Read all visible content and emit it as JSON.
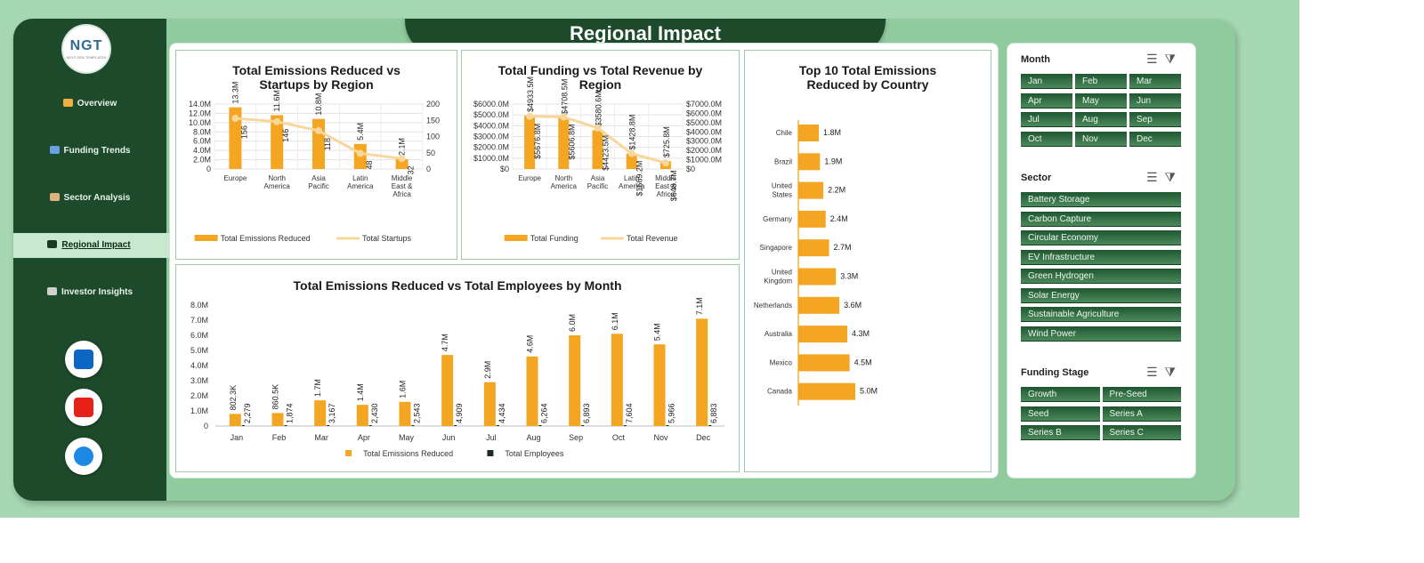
{
  "page_title": "Regional Impact",
  "logo": {
    "text": "NGT",
    "subtext": "NEXT GEN TEMPLATES"
  },
  "nav": [
    {
      "label": "Overview",
      "icon": "bar-chart-icon",
      "color": "#f0b040"
    },
    {
      "label": "Funding Trends",
      "icon": "trend-icon",
      "color": "#6aa0e0"
    },
    {
      "label": "Sector Analysis",
      "icon": "clipboard-icon",
      "color": "#e0b080"
    },
    {
      "label": "Regional Impact",
      "icon": "world-map-icon",
      "color": "#1a3a22"
    },
    {
      "label": "Investor Insights",
      "icon": "folder-icon",
      "color": "#d0d0d0"
    }
  ],
  "social": [
    {
      "name": "linkedin-icon",
      "color": "#0a66c2"
    },
    {
      "name": "youtube-icon",
      "color": "#e62117"
    },
    {
      "name": "website-globe-icon",
      "color": "#1e88e5"
    }
  ],
  "chart_data": [
    {
      "type": "bar",
      "title": "Total Emissions Reduced vs Startups by Region",
      "categories": [
        "Europe",
        "North America",
        "Asia Pacific",
        "Latin America",
        "Middle East & Africa"
      ],
      "series": [
        {
          "name": "Total Emissions Reduced",
          "values": [
            13.3,
            11.6,
            10.8,
            5.4,
            2.1
          ],
          "labels": [
            "13.3M",
            "11.6M",
            "10.8M",
            "5.4M",
            "2.1M"
          ],
          "color": "#f4a521"
        },
        {
          "name": "Total Startups",
          "type": "line",
          "values": [
            156,
            146,
            118,
            48,
            32
          ],
          "color": "#f7d79b"
        }
      ],
      "y_ticks": [
        "0",
        "2.0M",
        "4.0M",
        "6.0M",
        "8.0M",
        "10.0M",
        "12.0M",
        "14.0M"
      ],
      "ylim": [
        0,
        14
      ],
      "y2_ticks": [
        "0",
        "50",
        "100",
        "150",
        "200"
      ],
      "y2lim": [
        0,
        200
      ],
      "legend": "bottom"
    },
    {
      "type": "bar",
      "title": "Total Funding vs Total Revenue by Region",
      "categories": [
        "Europe",
        "North America",
        "Asia Pacific",
        "Latin America",
        "Middle East & Africa"
      ],
      "series": [
        {
          "name": "Total Funding",
          "values": [
            4933.5,
            4708.5,
            3580.6,
            1428.8,
            725.8
          ],
          "labels": [
            "$4933.5M",
            "$4708.5M",
            "$3580.6M",
            "$1428.8M",
            "$725.8M"
          ],
          "color": "#f4a521"
        },
        {
          "name": "Total Revenue",
          "type": "line",
          "values": [
            5676.8,
            5606.8,
            4423.5,
            1669.2,
            648.7
          ],
          "labels": [
            "$5676.8M",
            "$5606.8M",
            "$4423.5M",
            "$1669.2M",
            "$648.7M"
          ],
          "color": "#f7d79b"
        }
      ],
      "y_ticks": [
        "$0",
        "$1000.0M",
        "$2000.0M",
        "$3000.0M",
        "$4000.0M",
        "$5000.0M",
        "$6000.0M"
      ],
      "ylim": [
        0,
        6000
      ],
      "y2_ticks": [
        "$0",
        "$1000.0M",
        "$2000.0M",
        "$3000.0M",
        "$4000.0M",
        "$5000.0M",
        "$6000.0M",
        "$7000.0M"
      ],
      "y2lim": [
        0,
        7000
      ],
      "legend": "bottom"
    },
    {
      "type": "bar",
      "orientation": "horizontal",
      "title": "Top 10 Total Emissions Reduced by Country",
      "categories": [
        "Chile",
        "Brazil",
        "United States",
        "Germany",
        "Singapore",
        "United Kingdom",
        "Netherlands",
        "Australia",
        "Mexico",
        "Canada"
      ],
      "values": [
        1.8,
        1.9,
        2.2,
        2.4,
        2.7,
        3.3,
        3.6,
        4.3,
        4.5,
        5.0
      ],
      "labels": [
        "1.8M",
        "1.9M",
        "2.2M",
        "2.4M",
        "2.7M",
        "3.3M",
        "3.6M",
        "4.3M",
        "4.5M",
        "5.0M"
      ],
      "color": "#f4a521"
    },
    {
      "type": "bar",
      "title": "Total Emissions Reduced vs Total Employees by Month",
      "categories": [
        "Jan",
        "Feb",
        "Mar",
        "Apr",
        "May",
        "Jun",
        "Jul",
        "Aug",
        "Sep",
        "Oct",
        "Nov",
        "Dec"
      ],
      "series": [
        {
          "name": "Total Emissions Reduced",
          "values": [
            0.8023,
            0.8605,
            1.7,
            1.4,
            1.6,
            4.7,
            2.9,
            4.6,
            6.0,
            6.1,
            5.4,
            7.1
          ],
          "labels": [
            "802.3K",
            "860.5K",
            "1.7M",
            "1.4M",
            "1.6M",
            "4.7M",
            "2.9M",
            "4.6M",
            "6.0M",
            "6.1M",
            "5.4M",
            "7.1M"
          ],
          "color": "#f4a521"
        },
        {
          "name": "Total Employees",
          "values": [
            2279,
            1874,
            3167,
            2430,
            2543,
            4909,
            4434,
            6264,
            6893,
            7604,
            5966,
            6883
          ],
          "labels": [
            "2,279",
            "1,874",
            "3,167",
            "2,430",
            "2,543",
            "4,909",
            "4,434",
            "6,264",
            "6,893",
            "7,604",
            "5,966",
            "6,883"
          ],
          "color": "#1f2a22"
        }
      ],
      "y_ticks": [
        "0",
        "1.0M",
        "2.0M",
        "3.0M",
        "4.0M",
        "5.0M",
        "6.0M",
        "7.0M",
        "8.0M"
      ],
      "ylim": [
        0,
        8
      ],
      "legend": "bottom"
    }
  ],
  "slicers": [
    {
      "title": "Month",
      "items": [
        "Jan",
        "Feb",
        "Mar",
        "Apr",
        "May",
        "Jun",
        "Jul",
        "Aug",
        "Sep",
        "Oct",
        "Nov",
        "Dec"
      ],
      "cols": 3
    },
    {
      "title": "Sector",
      "items": [
        "Battery Storage",
        "Carbon Capture",
        "Circular Economy",
        "EV Infrastructure",
        "Green Hydrogen",
        "Solar Energy",
        "Sustainable Agriculture",
        "Wind Power"
      ],
      "cols": 1
    },
    {
      "title": "Funding Stage",
      "items": [
        "Growth",
        "Pre-Seed",
        "Seed",
        "Series A",
        "Series B",
        "Series C"
      ],
      "cols": 2
    }
  ]
}
